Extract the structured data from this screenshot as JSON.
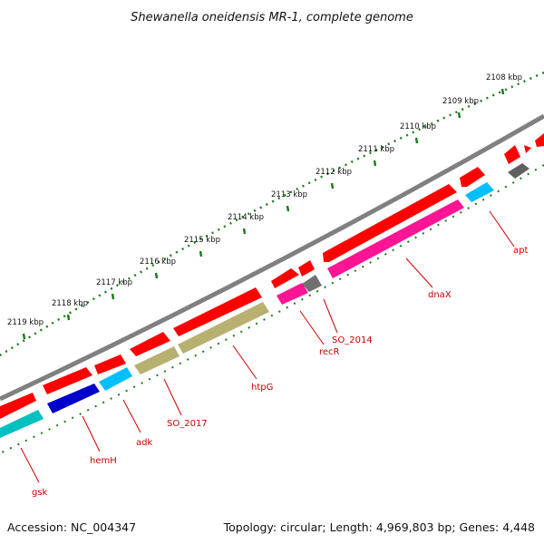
{
  "title": "Shewanella oneidensis MR-1, complete genome",
  "footer": {
    "accession": "Accession: NC_004347",
    "summary": "Topology: circular; Length: 4,969,803 bp; Genes: 4,448"
  },
  "ruler": {
    "ticks": [
      "2108 kbp",
      "2109 kbp",
      "2110 kbp",
      "2111 kbp",
      "2112 kbp",
      "2113 kbp",
      "2114 kbp",
      "2115 kbp",
      "2116 kbp",
      "2117 kbp",
      "2118 kbp",
      "2119 kbp"
    ]
  },
  "genes": [
    "apt",
    "dnaX",
    "SO_2014",
    "recR",
    "htpG",
    "SO_2017",
    "adk",
    "hemH",
    "gsk"
  ],
  "colors": {
    "backbone": "#808080",
    "cds": "#ff0000",
    "tick_dots": "#1a7a1a",
    "label": "#cc0000",
    "dnaX": "#ff1493",
    "recR": "#ff1493",
    "apt": "#00bfff",
    "adk": "#00bfff",
    "SO_2014": "#707070",
    "htpG": "#b8b070",
    "SO_2017": "#b8b070",
    "hemH": "#0000cc",
    "gsk": "#00c0c0"
  }
}
